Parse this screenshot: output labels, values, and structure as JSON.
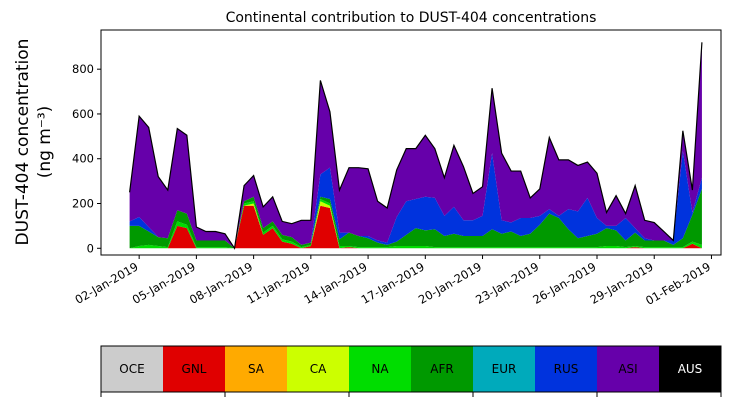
{
  "chart_data": {
    "type": "area",
    "stacked": true,
    "title": "Continental contribution to DUST-404 concentrations",
    "ylabel_line1": "DUST-404 concentration",
    "ylabel_line2": "(ng m⁻³)",
    "xlabel": "",
    "ylim": [
      -30,
      975
    ],
    "xlim": [
      "2018-12-31T00:00",
      "2019-02-01T12:00"
    ],
    "yticks": [
      0,
      200,
      400,
      600,
      800
    ],
    "xticks": [
      "02-Jan-2019",
      "05-Jan-2019",
      "08-Jan-2019",
      "11-Jan-2019",
      "14-Jan-2019",
      "17-Jan-2019",
      "20-Jan-2019",
      "23-Jan-2019",
      "26-Jan-2019",
      "29-Jan-2019",
      "01-Feb-2019"
    ],
    "xtick_dates": [
      "2019-01-02",
      "2019-01-05",
      "2019-01-08",
      "2019-01-11",
      "2019-01-14",
      "2019-01-17",
      "2019-01-20",
      "2019-01-23",
      "2019-01-26",
      "2019-01-29",
      "2019-02-01"
    ],
    "grid": false,
    "legend_position": "colorbar-bottom",
    "outline_color": "#000000",
    "x": [
      "2019-01-01T12:00",
      "2019-01-02T00:00",
      "2019-01-02T12:00",
      "2019-01-03T00:00",
      "2019-01-03T12:00",
      "2019-01-04T00:00",
      "2019-01-04T12:00",
      "2019-01-05T00:00",
      "2019-01-05T12:00",
      "2019-01-06T00:00",
      "2019-01-06T12:00",
      "2019-01-07T00:00",
      "2019-01-07T12:00",
      "2019-01-08T00:00",
      "2019-01-08T12:00",
      "2019-01-09T00:00",
      "2019-01-09T12:00",
      "2019-01-10T00:00",
      "2019-01-10T12:00",
      "2019-01-11T00:00",
      "2019-01-11T12:00",
      "2019-01-12T00:00",
      "2019-01-12T12:00",
      "2019-01-13T00:00",
      "2019-01-13T12:00",
      "2019-01-14T00:00",
      "2019-01-14T12:00",
      "2019-01-15T00:00",
      "2019-01-15T12:00",
      "2019-01-16T00:00",
      "2019-01-16T12:00",
      "2019-01-17T00:00",
      "2019-01-17T12:00",
      "2019-01-18T00:00",
      "2019-01-18T12:00",
      "2019-01-19T00:00",
      "2019-01-19T12:00",
      "2019-01-20T00:00",
      "2019-01-20T12:00",
      "2019-01-21T00:00",
      "2019-01-21T12:00",
      "2019-01-22T00:00",
      "2019-01-22T12:00",
      "2019-01-23T00:00",
      "2019-01-23T12:00",
      "2019-01-24T00:00",
      "2019-01-24T12:00",
      "2019-01-25T00:00",
      "2019-01-25T12:00",
      "2019-01-26T00:00",
      "2019-01-26T12:00",
      "2019-01-27T00:00",
      "2019-01-27T12:00",
      "2019-01-28T00:00",
      "2019-01-28T12:00",
      "2019-01-29T00:00",
      "2019-01-29T12:00",
      "2019-01-30T00:00",
      "2019-01-30T12:00",
      "2019-01-31T00:00",
      "2019-01-31T12:00"
    ],
    "series": [
      {
        "name": "OCE",
        "color": "#cccccc",
        "values": [
          0,
          0,
          0,
          0,
          0,
          0,
          0,
          0,
          0,
          0,
          0,
          0,
          0,
          0,
          0,
          0,
          0,
          0,
          0,
          0,
          0,
          0,
          0,
          0,
          0,
          0,
          0,
          0,
          0,
          0,
          0,
          0,
          0,
          0,
          0,
          0,
          0,
          0,
          0,
          0,
          0,
          0,
          0,
          0,
          0,
          0,
          0,
          0,
          0,
          0,
          0,
          0,
          0,
          0,
          0,
          0,
          0,
          0,
          0,
          0,
          0
        ]
      },
      {
        "name": "GNL",
        "color": "#e00000",
        "values": [
          0,
          0,
          0,
          0,
          0,
          100,
          90,
          0,
          0,
          0,
          0,
          0,
          190,
          190,
          60,
          90,
          30,
          20,
          0,
          10,
          190,
          180,
          0,
          5,
          0,
          0,
          0,
          0,
          0,
          0,
          0,
          0,
          0,
          0,
          0,
          0,
          0,
          0,
          0,
          0,
          0,
          0,
          0,
          0,
          0,
          0,
          0,
          0,
          0,
          0,
          0,
          0,
          0,
          5,
          0,
          0,
          0,
          0,
          0,
          20,
          0
        ]
      },
      {
        "name": "SA",
        "color": "#ffaa00",
        "values": [
          0,
          0,
          0,
          0,
          0,
          0,
          0,
          0,
          0,
          0,
          0,
          0,
          0,
          0,
          0,
          0,
          0,
          0,
          0,
          0,
          0,
          0,
          0,
          0,
          0,
          0,
          0,
          0,
          0,
          0,
          0,
          0,
          0,
          0,
          0,
          0,
          0,
          0,
          0,
          0,
          0,
          0,
          0,
          0,
          0,
          0,
          0,
          0,
          0,
          0,
          0,
          0,
          0,
          0,
          0,
          0,
          0,
          0,
          0,
          0,
          0
        ]
      },
      {
        "name": "CA",
        "color": "#ccff00",
        "values": [
          0,
          0,
          0,
          0,
          0,
          0,
          0,
          0,
          0,
          0,
          0,
          0,
          0,
          10,
          0,
          0,
          0,
          0,
          0,
          0,
          20,
          10,
          0,
          0,
          0,
          0,
          0,
          0,
          0,
          0,
          0,
          0,
          0,
          0,
          0,
          0,
          0,
          0,
          0,
          0,
          0,
          0,
          0,
          0,
          0,
          0,
          0,
          0,
          0,
          0,
          0,
          0,
          0,
          0,
          0,
          0,
          0,
          0,
          0,
          0,
          0
        ]
      },
      {
        "name": "NA",
        "color": "#00dd00",
        "values": [
          0,
          10,
          15,
          10,
          5,
          20,
          15,
          5,
          5,
          5,
          5,
          0,
          10,
          10,
          10,
          10,
          10,
          10,
          5,
          5,
          10,
          10,
          10,
          5,
          5,
          5,
          5,
          5,
          10,
          10,
          10,
          10,
          5,
          5,
          5,
          5,
          5,
          5,
          5,
          5,
          5,
          5,
          5,
          5,
          5,
          5,
          5,
          5,
          5,
          5,
          10,
          10,
          5,
          5,
          5,
          5,
          5,
          5,
          5,
          10,
          15
        ]
      },
      {
        "name": "AFR",
        "color": "#009900",
        "values": [
          100,
          90,
          60,
          40,
          40,
          50,
          50,
          30,
          30,
          30,
          30,
          0,
          10,
          20,
          20,
          20,
          20,
          20,
          10,
          10,
          10,
          20,
          30,
          60,
          50,
          40,
          20,
          10,
          20,
          50,
          80,
          70,
          80,
          50,
          60,
          50,
          50,
          50,
          80,
          60,
          70,
          50,
          60,
          100,
          150,
          130,
          80,
          40,
          50,
          60,
          80,
          70,
          30,
          60,
          30,
          30,
          30,
          10,
          40,
          120,
          250
        ]
      },
      {
        "name": "EUR",
        "color": "#00aabb",
        "values": [
          0,
          0,
          0,
          0,
          0,
          0,
          0,
          0,
          0,
          0,
          0,
          0,
          0,
          0,
          0,
          0,
          0,
          0,
          0,
          0,
          0,
          0,
          0,
          0,
          0,
          0,
          0,
          0,
          0,
          0,
          0,
          0,
          0,
          0,
          0,
          0,
          0,
          0,
          0,
          0,
          0,
          0,
          0,
          0,
          0,
          0,
          0,
          0,
          0,
          0,
          0,
          0,
          0,
          0,
          0,
          0,
          0,
          0,
          0,
          0,
          0
        ]
      },
      {
        "name": "RUS",
        "color": "#0033dd",
        "values": [
          20,
          40,
          20,
          0,
          0,
          0,
          0,
          0,
          0,
          0,
          0,
          0,
          0,
          0,
          0,
          0,
          0,
          0,
          0,
          0,
          100,
          140,
          30,
          0,
          0,
          10,
          10,
          10,
          110,
          150,
          130,
          150,
          140,
          90,
          120,
          70,
          70,
          90,
          340,
          60,
          40,
          80,
          70,
          40,
          20,
          10,
          90,
          120,
          170,
          70,
          10,
          20,
          100,
          20,
          10,
          0,
          0,
          20,
          390,
          10,
          50
        ]
      },
      {
        "name": "ASI",
        "color": "#6600aa",
        "values": [
          130,
          450,
          445,
          270,
          215,
          365,
          350,
          60,
          40,
          40,
          30,
          0,
          70,
          95,
          95,
          110,
          60,
          60,
          110,
          100,
          420,
          250,
          190,
          290,
          305,
          300,
          175,
          155,
          210,
          235,
          225,
          275,
          220,
          170,
          275,
          240,
          120,
          130,
          290,
          300,
          230,
          210,
          90,
          120,
          320,
          250,
          220,
          205,
          160,
          200,
          60,
          135,
          20,
          190,
          80,
          80,
          40,
          0,
          90,
          100,
          605
        ]
      },
      {
        "name": "AUS",
        "color": "#000000",
        "values": [
          0,
          0,
          0,
          0,
          0,
          0,
          0,
          0,
          0,
          0,
          0,
          0,
          0,
          0,
          0,
          0,
          0,
          0,
          0,
          0,
          0,
          0,
          0,
          0,
          0,
          0,
          0,
          0,
          0,
          0,
          0,
          0,
          0,
          0,
          0,
          0,
          0,
          0,
          0,
          0,
          0,
          0,
          0,
          0,
          0,
          0,
          0,
          0,
          0,
          0,
          0,
          0,
          0,
          0,
          0,
          0,
          0,
          0,
          0,
          0,
          0
        ]
      }
    ]
  }
}
